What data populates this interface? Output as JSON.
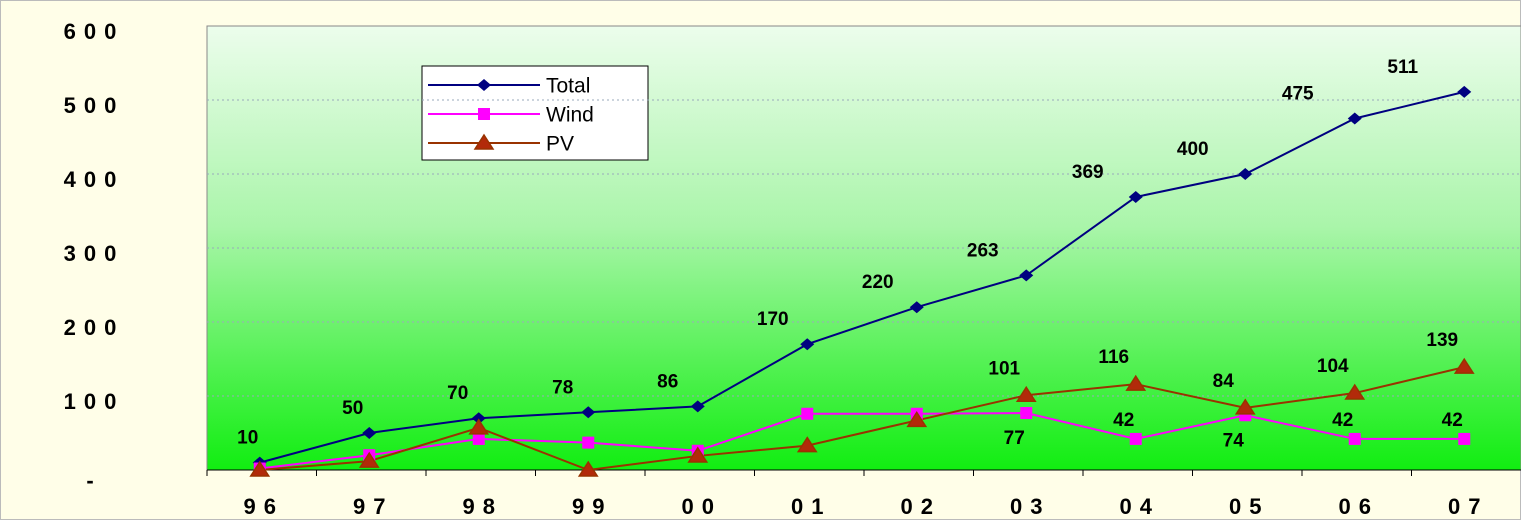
{
  "chart_data": {
    "type": "line",
    "categories": [
      "96",
      "97",
      "98",
      "99",
      "00",
      "01",
      "02",
      "03",
      "04",
      "05",
      "06",
      "07"
    ],
    "series": [
      {
        "name": "Total",
        "color": "#000080",
        "marker": "diamond",
        "values": [
          10,
          50,
          70,
          78,
          86,
          170,
          220,
          263,
          369,
          400,
          475,
          511
        ],
        "value_labels": [
          "10",
          "50",
          "70",
          "78",
          "86",
          "170",
          "220",
          "263",
          "369",
          "400",
          "475",
          "511"
        ]
      },
      {
        "name": "Wind",
        "color": "#ff00ff",
        "marker": "square",
        "values": [
          2,
          20,
          42,
          37,
          26,
          76,
          76,
          77,
          42,
          74,
          42,
          42
        ],
        "value_labels": [
          null,
          null,
          null,
          null,
          null,
          null,
          null,
          "77",
          "42",
          "74",
          "42",
          "42"
        ]
      },
      {
        "name": "PV",
        "color": "#993300",
        "marker": "triangle",
        "values": [
          0,
          12,
          57,
          0,
          19,
          33,
          67,
          101,
          116,
          84,
          104,
          139
        ],
        "value_labels": [
          null,
          null,
          null,
          null,
          null,
          null,
          null,
          "101",
          "116",
          "84",
          "104",
          "139"
        ]
      }
    ],
    "ylim": [
      0,
      600
    ],
    "yticks": [
      {
        "value": 0,
        "label": "-"
      },
      100,
      200,
      300,
      400,
      500,
      600
    ],
    "grid": true,
    "legend": "upper left"
  }
}
